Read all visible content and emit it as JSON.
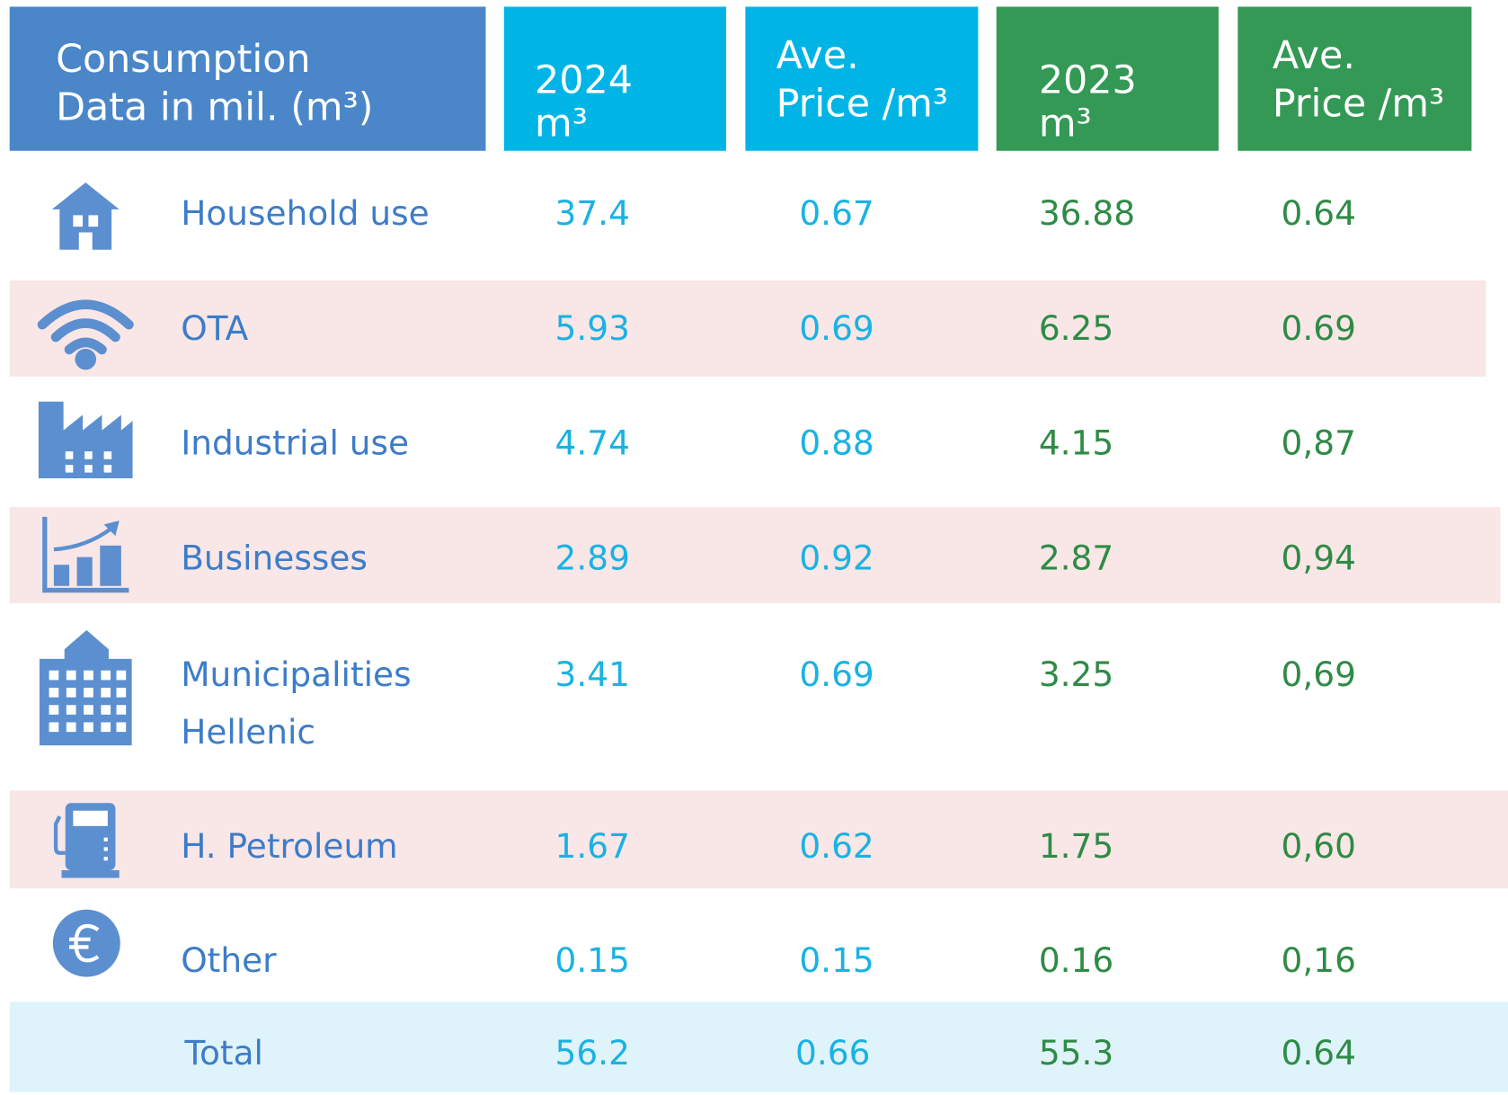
{
  "header": {
    "cells": [
      [
        "Consumption",
        "Data in mil. (m³)"
      ],
      [
        "2024",
        "m³"
      ],
      [
        "Ave.",
        "Price /m³"
      ],
      [
        "2023",
        "m³"
      ],
      [
        "Ave.",
        "Price /m³"
      ]
    ]
  },
  "table": {
    "rows": [
      {
        "label": [
          "Household use"
        ],
        "cells": [
          "37.4",
          "0.67",
          "36.88",
          "0.64"
        ]
      },
      {
        "label": [
          "OTA"
        ],
        "cells": [
          "5.93",
          "0.69",
          "6.25",
          "0.69"
        ]
      },
      {
        "label": [
          "Industrial use"
        ],
        "cells": [
          "4.74",
          "0.88",
          "4.15",
          "0,87"
        ]
      },
      {
        "label": [
          "Businesses"
        ],
        "cells": [
          "2.89",
          "0.92",
          "2.87",
          "0,94"
        ]
      },
      {
        "label": [
          "Municipalities",
          "Hellenic"
        ],
        "cells": [
          "3.41",
          "0.69",
          "3.25",
          "0,69"
        ]
      },
      {
        "label": [
          "H. Petroleum"
        ],
        "cells": [
          "1.67",
          "0.62",
          "1.75",
          "0,60"
        ]
      },
      {
        "label": [
          "Other"
        ],
        "cells": [
          "0.15",
          "0.15",
          "0.16",
          "0,16"
        ]
      },
      {
        "label": [
          "Total"
        ],
        "cells": [
          "56.2",
          "0.66",
          "55.3",
          "0.64"
        ]
      }
    ]
  }
}
